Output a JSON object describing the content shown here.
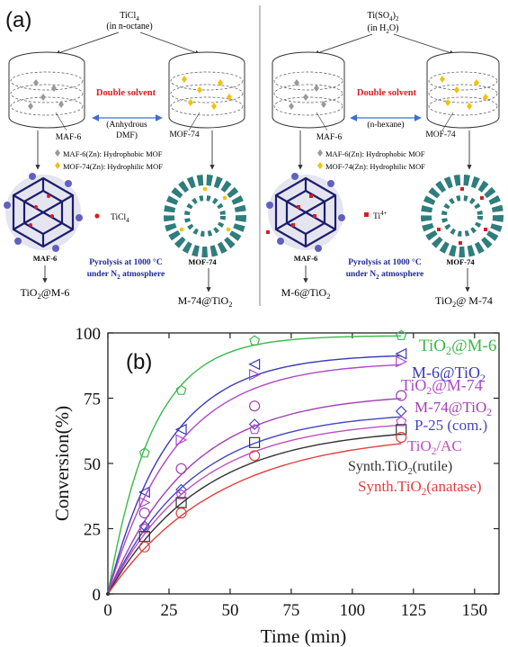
{
  "panel_a": {
    "label": "(a)",
    "left": {
      "precursor": "TiCl",
      "precursor_sub": "4",
      "solvent": "(in n-octane)",
      "double_solvent": "Double solvent",
      "inner_solvent": "(Anhydrous",
      "inner_solvent2": "DMF)",
      "maf_label": "MAF-6",
      "mof_label": "MOF-74",
      "legend_maf": "MAF-6(Zn): Hydrophobic MOF",
      "legend_mof": "MOF-74(Zn): Hydrophilic MOF",
      "species": "TiCl",
      "species_sub": "4",
      "maf_struct": "MAF-6",
      "mof_struct": "MOF-74",
      "pyrolysis_1": "Pyrolysis at 1000 °C",
      "pyrolysis_2a": "under N",
      "pyrolysis_2sub": "2",
      "pyrolysis_2b": " atmosphere",
      "product_left_a": "TiO",
      "product_left_sub": "2",
      "product_left_b": "@M-6",
      "product_right": "M-74@TiO",
      "product_right_sub": "2"
    },
    "right": {
      "precursor": "Ti(SO",
      "precursor_sub": "4",
      "precursor_end": ")",
      "precursor_sub2": "2",
      "solvent": "(in H",
      "solvent_sub": "2",
      "solvent_end": "O)",
      "double_solvent": "Double solvent",
      "inner_solvent": "(n-hexane)",
      "maf_label": "MAF-6",
      "mof_label": "MOF-74",
      "legend_maf": "MAF-6(Zn): Hydrophobic MOF",
      "legend_mof": "MOF-74(Zn): Hydrophilic MOF",
      "species": "Ti",
      "species_sup": "4+",
      "maf_struct": "MAF-6",
      "mof_struct": "MOF-74",
      "pyrolysis_1": "Pyrolysis at 1000 °C",
      "pyrolysis_2a": "under N",
      "pyrolysis_2sub": "2",
      "pyrolysis_2b": " atmosphere",
      "product_left": "M-6@TiO",
      "product_left_sub": "2",
      "product_right_a": "TiO",
      "product_right_sub": "2",
      "product_right_b": "@ M-74"
    },
    "colors": {
      "red": "#d62020",
      "blue": "#1f2a9a",
      "arrow_blue": "#3a6fd0",
      "yellow": "#f2c200",
      "grey": "#888888",
      "teal": "#2f7d7d",
      "navy": "#1c1c6e"
    }
  },
  "panel_b": {
    "label": "(b)"
  },
  "chart_data": {
    "type": "scatter",
    "xlabel": "Time (min)",
    "ylabel": "Conversion(%)",
    "xlim": [
      0,
      160
    ],
    "ylim": [
      0,
      100
    ],
    "xticks": [
      0,
      25,
      50,
      75,
      100,
      125,
      150
    ],
    "yticks": [
      0,
      25,
      50,
      75,
      100
    ],
    "grid": false,
    "legend": "inline-right",
    "x": [
      0,
      15,
      30,
      60,
      120
    ],
    "series": [
      {
        "name": "TiO2@M-6",
        "label_main": "TiO",
        "label_sub": "2",
        "label_end": "@M-6",
        "color": "#3cb84a",
        "marker": "pentagon",
        "values": [
          0,
          54,
          78,
          97,
          99
        ],
        "fit": [
          99,
          0.055
        ]
      },
      {
        "name": "M-6@TiO2",
        "label_main": "M-6@TiO",
        "label_sub": "2",
        "label_end": "",
        "color": "#3a3ab8",
        "marker": "triangle-left",
        "values": [
          0,
          39,
          63,
          88,
          92
        ],
        "fit": [
          92,
          0.04
        ]
      },
      {
        "name": "TiO2@M-74",
        "label_main": "TiO",
        "label_sub": "2",
        "label_end": "@M-74",
        "color": "#b048c8",
        "marker": "triangle-right",
        "values": [
          0,
          35,
          59,
          84,
          89
        ],
        "fit": [
          89,
          0.036
        ]
      },
      {
        "name": "M-74@TiO2",
        "label_main": "M-74@TiO",
        "label_sub": "2",
        "label_end": "",
        "color": "#a040b0",
        "marker": "circle",
        "values": [
          0,
          31,
          48,
          72,
          76
        ],
        "fit": [
          77,
          0.03
        ]
      },
      {
        "name": "P-25 (com.)",
        "label_main": "P-25 (com.)",
        "label_sub": "",
        "label_end": "",
        "color": "#4545c0",
        "marker": "diamond",
        "values": [
          0,
          26,
          40,
          65,
          70
        ],
        "fit": [
          70,
          0.029
        ]
      },
      {
        "name": "TiO2/AC",
        "label_main": "TiO",
        "label_sub": "2",
        "label_end": "/AC",
        "color": "#c050c0",
        "marker": "pentagon",
        "values": [
          0,
          25,
          38,
          63,
          66
        ],
        "fit": [
          67,
          0.028
        ]
      },
      {
        "name": "Synth.TiO2(rutile)",
        "label_main": "Synth.TiO",
        "label_sub": "2",
        "label_end": "(rutile)",
        "color": "#333333",
        "marker": "square",
        "values": [
          0,
          22,
          35,
          58,
          63
        ],
        "fit": [
          64,
          0.026
        ]
      },
      {
        "name": "Synth.TiO2(anatase)",
        "label_main": "Synth.TiO",
        "label_sub": "2",
        "label_end": "(anatase)",
        "color": "#e04040",
        "marker": "circle",
        "values": [
          0,
          18,
          31,
          53,
          60
        ],
        "fit": [
          62,
          0.022
        ]
      }
    ]
  }
}
